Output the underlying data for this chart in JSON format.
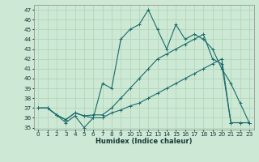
{
  "xlabel": "Humidex (Indice chaleur)",
  "xlim": [
    -0.5,
    23.5
  ],
  "ylim": [
    34.8,
    47.5
  ],
  "yticks": [
    35,
    36,
    37,
    38,
    39,
    40,
    41,
    42,
    43,
    44,
    45,
    46,
    47
  ],
  "xticks": [
    0,
    1,
    2,
    3,
    4,
    5,
    6,
    7,
    8,
    9,
    10,
    11,
    12,
    13,
    14,
    15,
    16,
    17,
    18,
    19,
    20,
    21,
    22,
    23
  ],
  "bg_color": "#cde8d4",
  "line_color": "#1a6b6b",
  "grid_color": "#b0d8b8",
  "series1": [
    37.0,
    37.0,
    36.3,
    35.5,
    36.2,
    35.0,
    36.0,
    39.5,
    39.0,
    44.0,
    45.0,
    45.5,
    47.0,
    45.0,
    43.0,
    45.5,
    44.0,
    44.5,
    44.0,
    43.0,
    41.0,
    39.5,
    37.5,
    35.5
  ],
  "series2": [
    37.0,
    37.0,
    36.3,
    35.8,
    36.5,
    36.2,
    36.0,
    36.0,
    36.5,
    36.8,
    37.2,
    37.5,
    38.0,
    38.5,
    39.0,
    39.5,
    40.0,
    40.5,
    41.0,
    41.5,
    42.0,
    35.5,
    35.5,
    35.5
  ],
  "series3": [
    37.0,
    37.0,
    36.3,
    35.8,
    36.5,
    36.2,
    36.3,
    36.3,
    37.0,
    38.0,
    39.0,
    40.0,
    41.0,
    42.0,
    42.5,
    43.0,
    43.5,
    44.0,
    44.5,
    42.0,
    41.5,
    35.5,
    35.5,
    35.5
  ]
}
